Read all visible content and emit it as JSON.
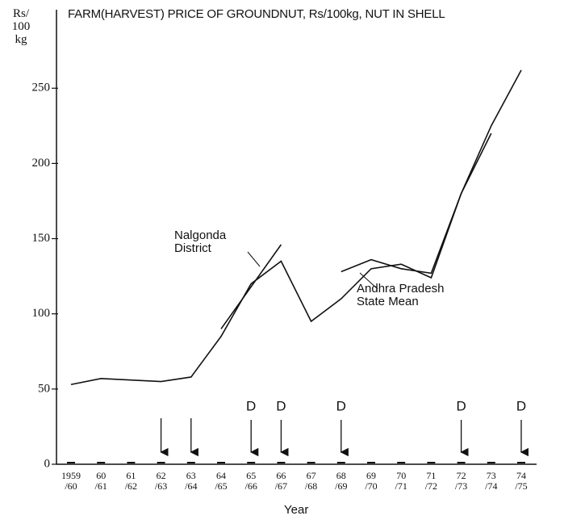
{
  "chart_data": {
    "type": "line",
    "title": "FARM(HARVEST) PRICE OF GROUNDNUT, Rs/100kg, NUT IN SHELL",
    "y_label": "Rs/\n100\nkg",
    "x_label": "Year",
    "categories": [
      "1959\n/60",
      "60\n/61",
      "61\n/62",
      "62\n/63",
      "63\n/64",
      "64\n/65",
      "65\n/66",
      "66\n/67",
      "67\n/68",
      "68\n/69",
      "69\n/70",
      "70\n/71",
      "71\n/72",
      "72\n/73",
      "73\n/74",
      "74\n/75"
    ],
    "series": [
      {
        "name": "Andhra Pradesh State Mean",
        "color": "#111111",
        "values": [
          53,
          57,
          56,
          55,
          58,
          85,
          120,
          135,
          95,
          110,
          130,
          133,
          124,
          180,
          225,
          262
        ]
      },
      {
        "name": "Nalgonda District",
        "color": "#111111",
        "values": [
          null,
          null,
          null,
          null,
          null,
          90,
          118,
          146,
          null,
          128,
          136,
          130,
          127,
          180,
          220,
          null
        ]
      }
    ],
    "annotations": [
      "D",
      "D",
      "D",
      "D",
      "D"
    ],
    "ylim": [
      0,
      270
    ],
    "yticks": [
      0,
      50,
      100,
      150,
      200,
      250
    ],
    "grid": false
  }
}
